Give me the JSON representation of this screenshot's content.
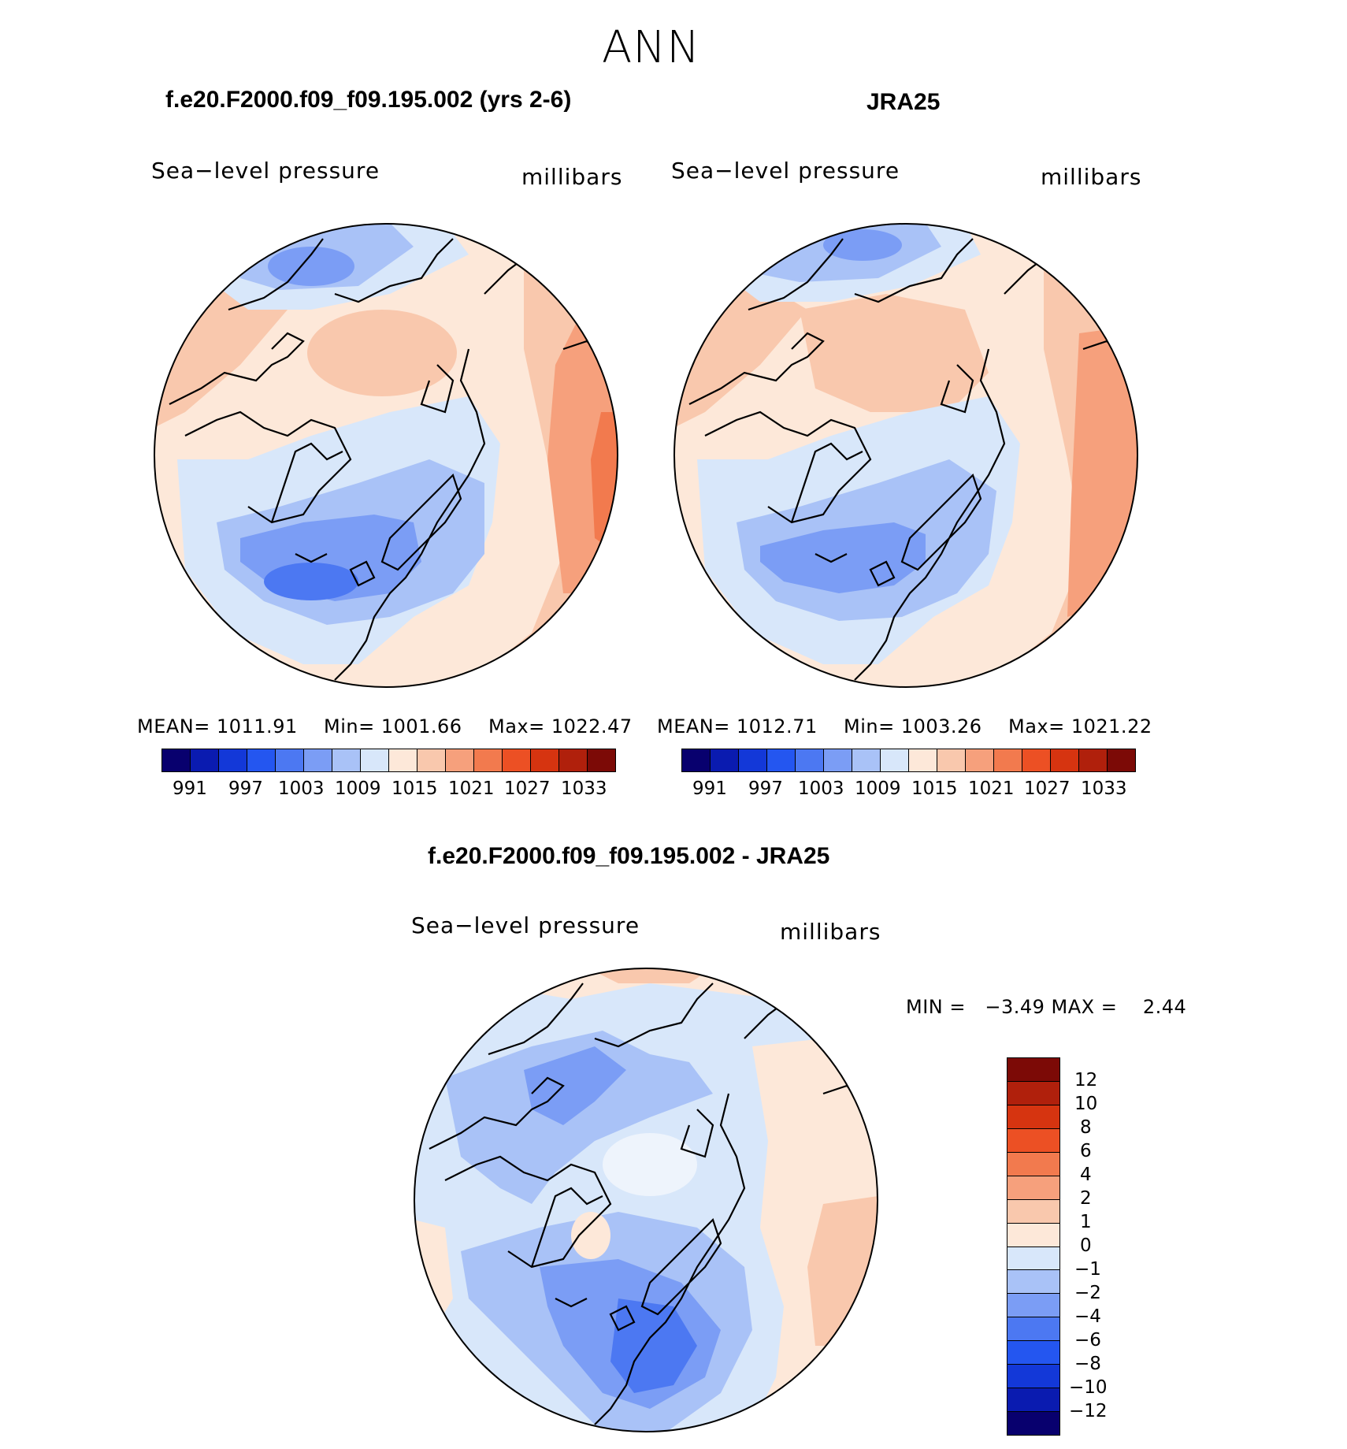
{
  "season": "ANN",
  "panels": {
    "model": {
      "title": "f.e20.F2000.f09_f09.195.002 (yrs 2-6)",
      "left_label": "Sea−level pressure",
      "right_label": "millibars",
      "stats": {
        "mean": "MEAN= 1011.91",
        "min": "Min= 1001.66",
        "max": "Max= 1022.47"
      }
    },
    "obs": {
      "title": "JRA25",
      "left_label": "Sea−level pressure",
      "right_label": "millibars",
      "stats": {
        "mean": "MEAN= 1012.71",
        "min": "Min= 1003.26",
        "max": "Max= 1021.22"
      }
    },
    "diff": {
      "title": "f.e20.F2000.f09_f09.195.002 - JRA25",
      "left_label": "Sea−level pressure",
      "right_label": "millibars",
      "minmax": "MIN =   −3.49 MAX =    2.44"
    }
  },
  "field_colorbar": {
    "ticks": [
      "991",
      "997",
      "1003",
      "1009",
      "1015",
      "1021",
      "1027",
      "1033"
    ],
    "colors": [
      "#08006e",
      "#0a1bb0",
      "#1338d8",
      "#2456f0",
      "#4c78f2",
      "#7b9df5",
      "#a9c2f7",
      "#d8e7fa",
      "#fde8d9",
      "#f9c8ad",
      "#f6a07c",
      "#f27a4e",
      "#ec5024",
      "#d63410",
      "#b0200c",
      "#7c0a06"
    ]
  },
  "diff_colorbar": {
    "ticks": [
      "12",
      "10",
      "8",
      "6",
      "4",
      "2",
      "1",
      "0",
      "−1",
      "−2",
      "−4",
      "−6",
      "−8",
      "−10",
      "−12"
    ],
    "colors_top_to_bottom": [
      "#7c0a06",
      "#b0200c",
      "#d63410",
      "#ec5024",
      "#f27a4e",
      "#f6a07c",
      "#f9c8ad",
      "#fde8d9",
      "#d8e7fa",
      "#a9c2f7",
      "#7b9df5",
      "#4c78f2",
      "#2456f0",
      "#1338d8",
      "#0a1bb0",
      "#08006e"
    ]
  },
  "map_colors": {
    "pale_red": "#fde8d9",
    "light_red": "#f9c8ad",
    "mid_red": "#f6a07c",
    "red": "#f27a4e",
    "pale_blue": "#d8e7fa",
    "light_blue": "#a9c2f7",
    "mid_blue": "#7b9df5",
    "blue": "#4c78f2",
    "coast": "#000000"
  }
}
